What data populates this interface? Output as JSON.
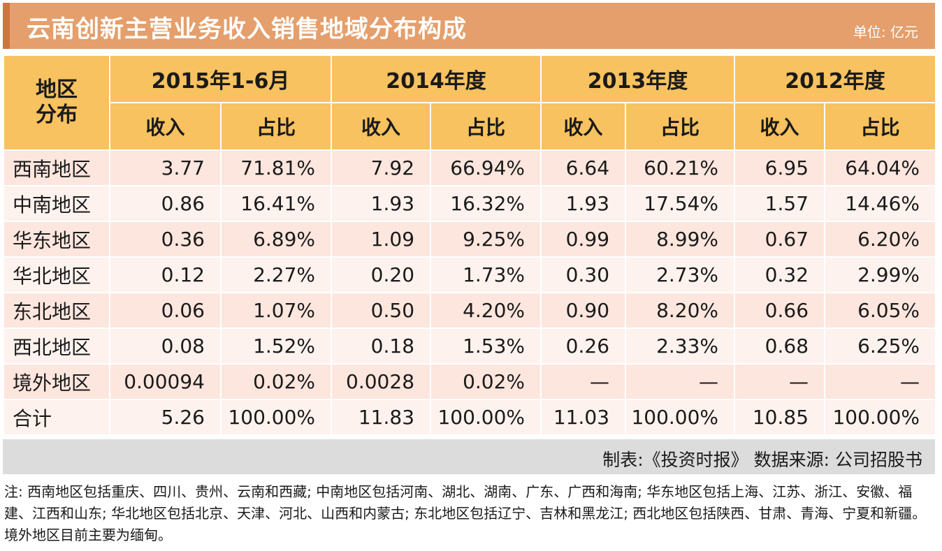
{
  "header": {
    "title": "云南创新主营业务收入销售地域分布构成",
    "unit": "单位: 亿元"
  },
  "table": {
    "row_header": "地区分布",
    "periods": [
      "2015年1-6月",
      "2014年度",
      "2013年度",
      "2012年度"
    ],
    "subheaders": {
      "income": "收入",
      "share": "占比"
    },
    "rows": [
      {
        "region": "西南地区",
        "values": [
          "3.77",
          "71.81%",
          "7.92",
          "66.94%",
          "6.64",
          "60.21%",
          "6.95",
          "64.04%"
        ]
      },
      {
        "region": "中南地区",
        "values": [
          "0.86",
          "16.41%",
          "1.93",
          "16.32%",
          "1.93",
          "17.54%",
          "1.57",
          "14.46%"
        ]
      },
      {
        "region": "华东地区",
        "values": [
          "0.36",
          "6.89%",
          "1.09",
          "9.25%",
          "0.99",
          "8.99%",
          "0.67",
          "6.20%"
        ]
      },
      {
        "region": "华北地区",
        "values": [
          "0.12",
          "2.27%",
          "0.20",
          "1.73%",
          "0.30",
          "2.73%",
          "0.32",
          "2.99%"
        ]
      },
      {
        "region": "东北地区",
        "values": [
          "0.06",
          "1.07%",
          "0.50",
          "4.20%",
          "0.90",
          "8.20%",
          "0.66",
          "6.05%"
        ]
      },
      {
        "region": "西北地区",
        "values": [
          "0.08",
          "1.52%",
          "0.18",
          "1.53%",
          "0.26",
          "2.33%",
          "0.68",
          "6.25%"
        ]
      },
      {
        "region": "境外地区",
        "values": [
          "0.00094",
          "0.02%",
          "0.0028",
          "0.02%",
          "—",
          "—",
          "—",
          "—"
        ]
      },
      {
        "region": "合计",
        "values": [
          "5.26",
          "100.00%",
          "11.83",
          "100.00%",
          "11.03",
          "100.00%",
          "10.85",
          "100.00%"
        ]
      }
    ]
  },
  "footer": {
    "source": "制表:《投资时报》 数据来源: 公司招股书"
  },
  "note": "注: 西南地区包括重庆、四川、贵州、云南和西藏; 中南地区包括河南、湖北、湖南、广东、广西和海南; 华东地区包括上海、江苏、浙江、安徽、福建、江西和山东; 华北地区包括北京、天津、河北、山西和内蒙古; 东北地区包括辽宁、吉林和黑龙江; 西北地区包括陕西、甘肃、青海、宁夏和新疆。境外地区目前主要为缅甸。"
}
